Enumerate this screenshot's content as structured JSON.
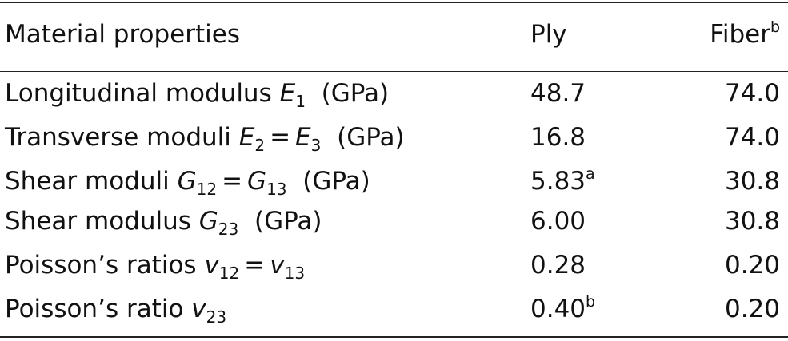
{
  "table": {
    "headers": {
      "property": "Material properties",
      "ply": "Ply",
      "fiber": "Fiber",
      "fiber_note": "b"
    },
    "rows": [
      {
        "name": "Longitudinal modulus",
        "sym1": "E",
        "sub1": "1",
        "eq": "",
        "sym2": "",
        "sub2": "",
        "unit": "(GPa)",
        "ply": "48.7",
        "ply_note": "",
        "fiber": "74.0"
      },
      {
        "name": "Transverse moduli",
        "sym1": "E",
        "sub1": "2",
        "eq": "=",
        "sym2": "E",
        "sub2": "3",
        "unit": "(GPa)",
        "ply": "16.8",
        "ply_note": "",
        "fiber": "74.0"
      },
      {
        "name": "Shear moduli",
        "sym1": "G",
        "sub1": "12",
        "eq": "=",
        "sym2": "G",
        "sub2": "13",
        "unit": "(GPa)",
        "ply": "5.83",
        "ply_note": "a",
        "fiber": "30.8"
      },
      {
        "name": "Shear modulus",
        "sym1": "G",
        "sub1": "23",
        "eq": "",
        "sym2": "",
        "sub2": "",
        "unit": "(GPa)",
        "ply": "6.00",
        "ply_note": "",
        "fiber": "30.8"
      },
      {
        "name": "Poisson’s ratios",
        "sym1": "v",
        "sub1": "12",
        "eq": "=",
        "sym2": "v",
        "sub2": "13",
        "unit": "",
        "ply": "0.28",
        "ply_note": "",
        "fiber": "0.20"
      },
      {
        "name": "Poisson’s ratio",
        "sym1": "v",
        "sub1": "23",
        "eq": "",
        "sym2": "",
        "sub2": "",
        "unit": "",
        "ply": "0.40",
        "ply_note": "b",
        "fiber": "0.20"
      }
    ]
  }
}
